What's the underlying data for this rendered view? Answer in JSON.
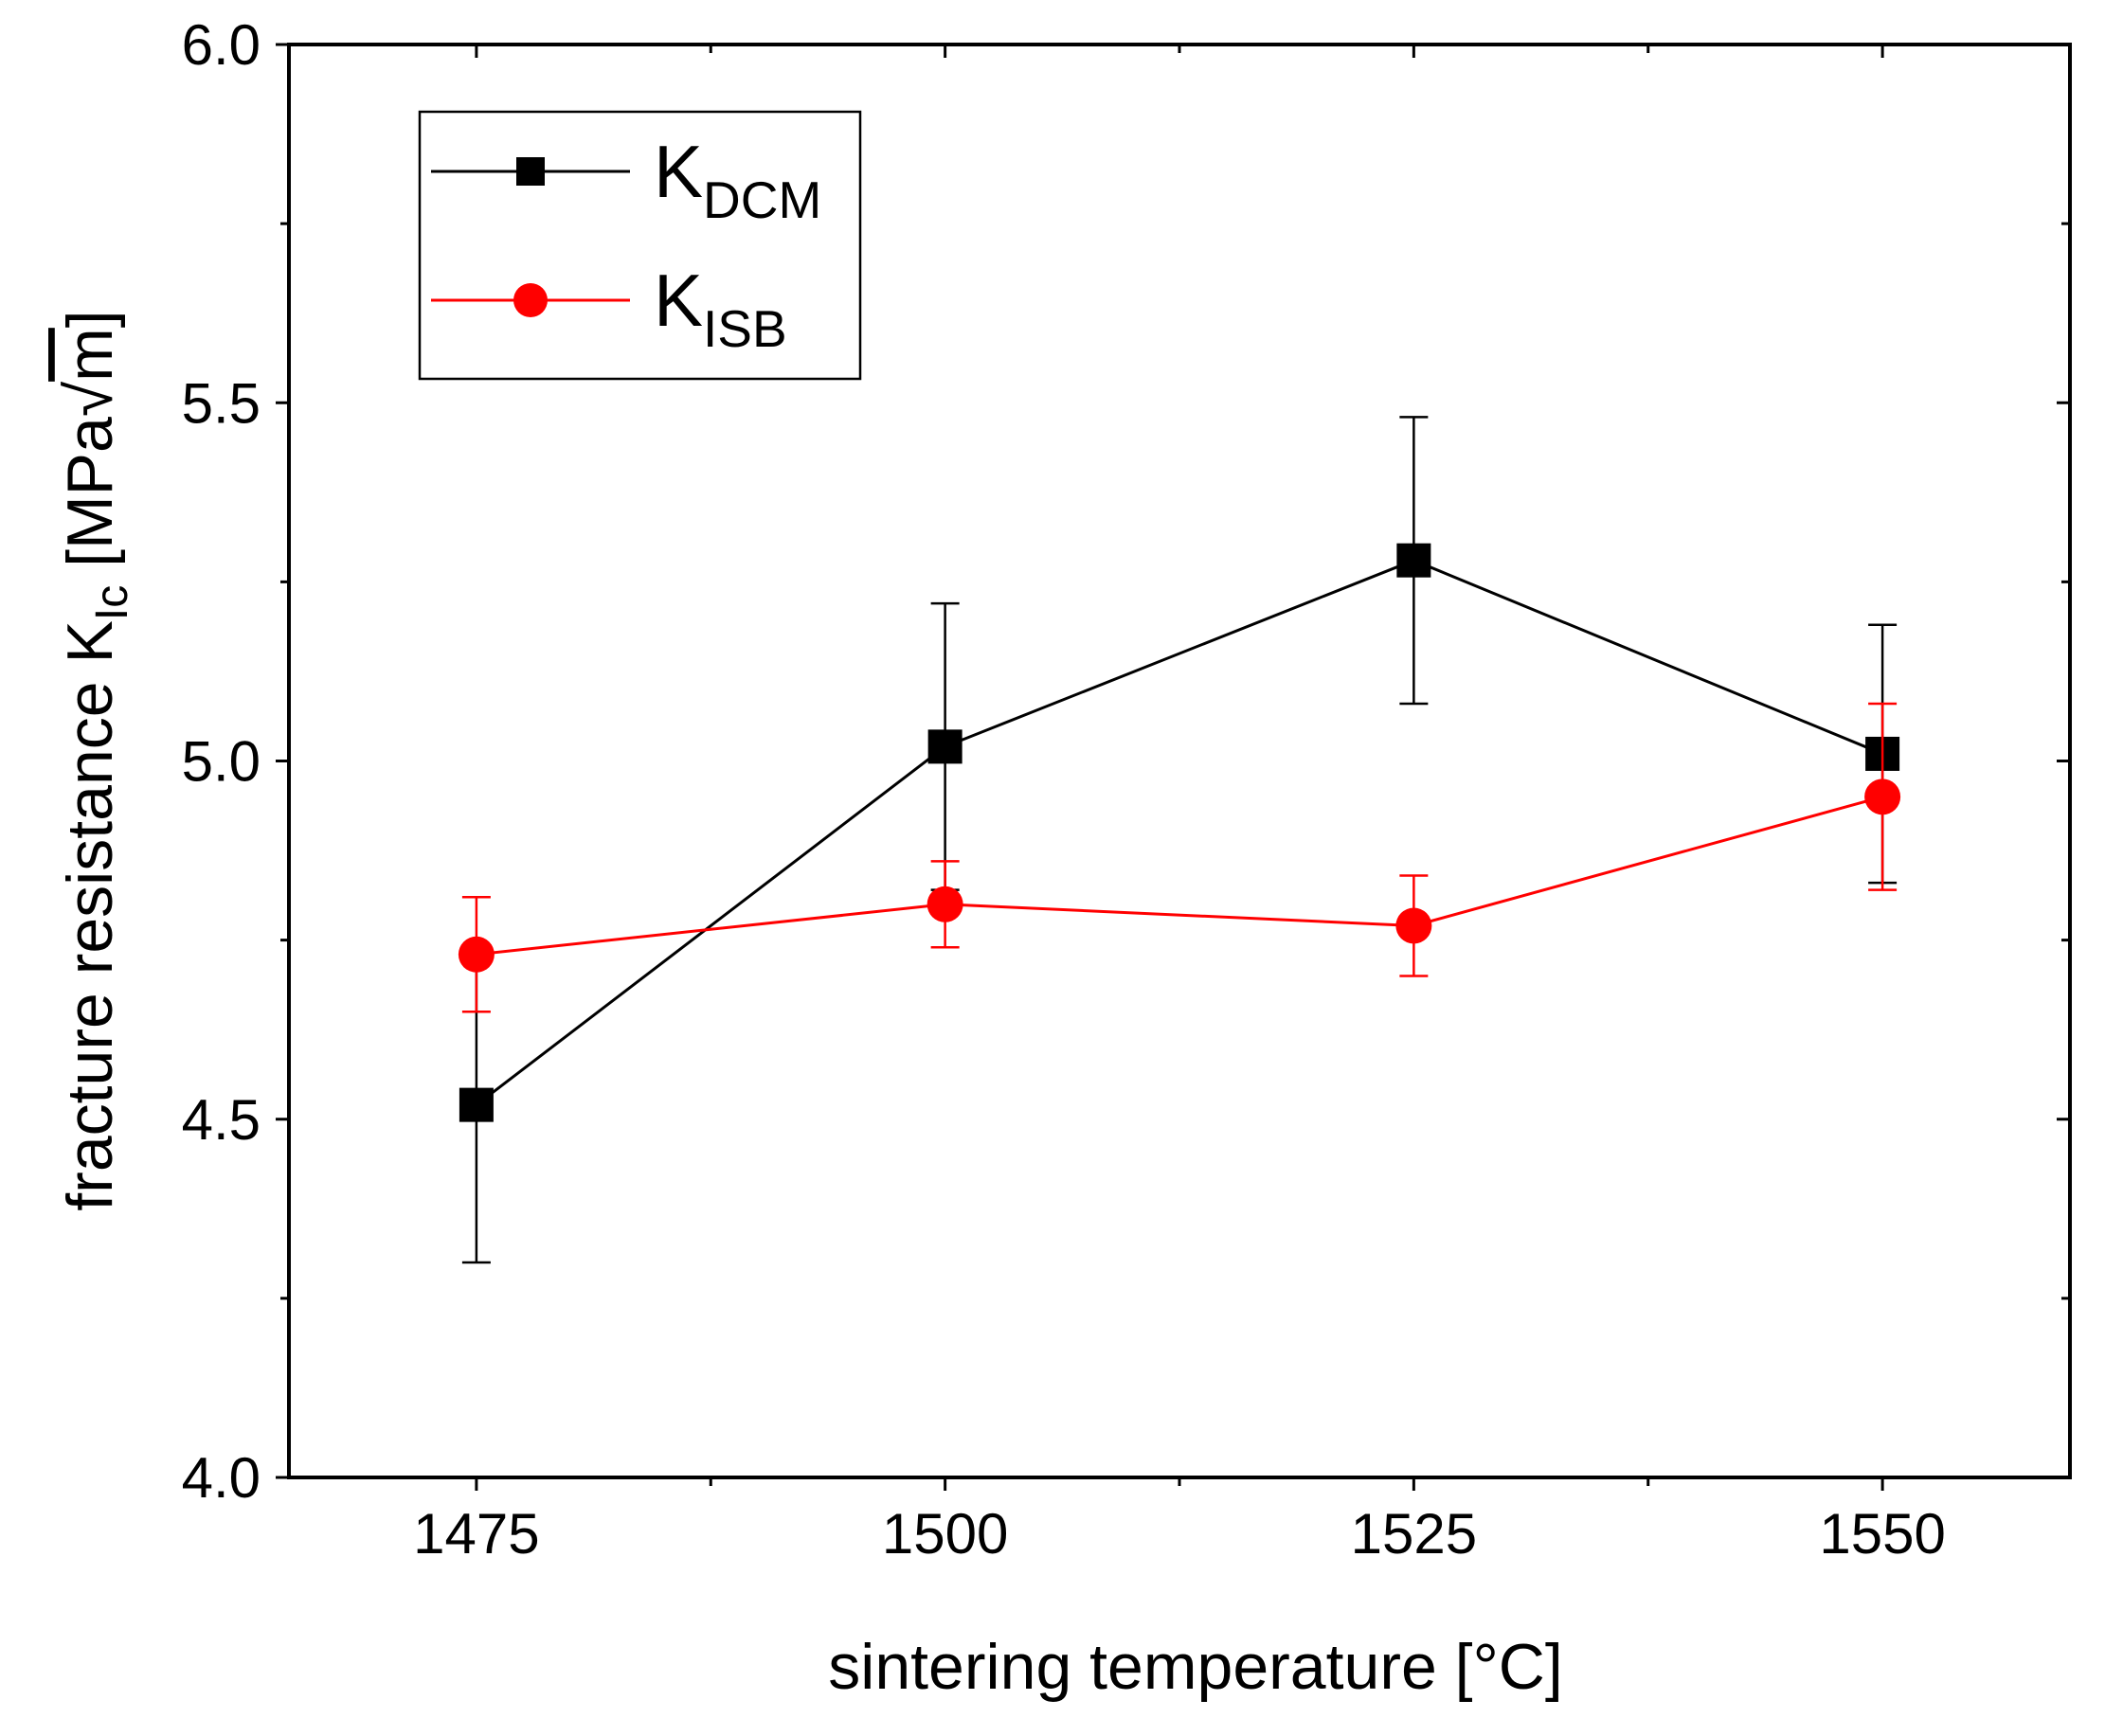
{
  "chart_data": {
    "type": "line",
    "title": "",
    "xlabel": "sintering temperature [°C]",
    "ylabel": {
      "main": "fracture resistance K",
      "sub": "Ic",
      "unit_open": " [MPa",
      "root": "√",
      "root_arg": "m",
      "unit_close": "]"
    },
    "x": [
      1475,
      1500,
      1525,
      1550
    ],
    "xlim": [
      1465,
      1560
    ],
    "ylim": [
      4.0,
      6.0
    ],
    "xticks": [
      1475,
      1500,
      1525,
      1550
    ],
    "xtick_labels": [
      "1475",
      "1500",
      "1525",
      "1550"
    ],
    "yticks": [
      4.0,
      4.5,
      5.0,
      5.5,
      6.0
    ],
    "ytick_labels": [
      "4.0",
      "4.5",
      "5.0",
      "5.5",
      "6.0"
    ],
    "grid": false,
    "legend_position": "top-left",
    "series": [
      {
        "name": "K",
        "name_sub": "DCM",
        "color": "#000000",
        "marker": "square",
        "values": [
          4.52,
          5.02,
          5.28,
          5.01
        ],
        "error": [
          0.22,
          0.2,
          0.2,
          0.18
        ]
      },
      {
        "name": "K",
        "name_sub": "ISB",
        "color": "#ff0000",
        "marker": "circle",
        "values": [
          4.73,
          4.8,
          4.77,
          4.95
        ],
        "error": [
          0.08,
          0.06,
          0.07,
          0.13
        ]
      }
    ]
  }
}
